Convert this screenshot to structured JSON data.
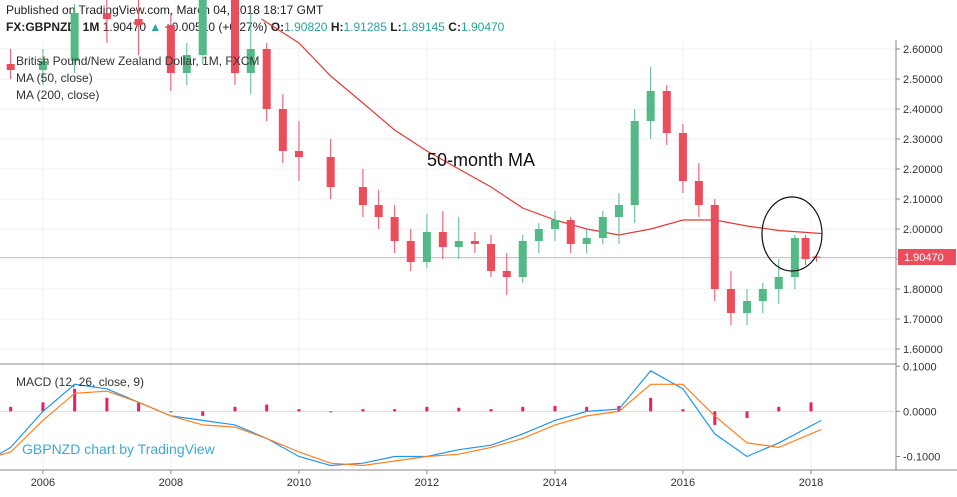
{
  "header": {
    "published": "Published on TradingView.com, March 04, 2018 18:17 GMT",
    "symbol": "FX:GBPNZD, 1M",
    "last": "1.90470",
    "change": "+0.00510 (+0.27%)",
    "open_label": "O:",
    "open": "1.90820",
    "high_label": "H:",
    "high": "1.91285",
    "low_label": "L:",
    "low": "1.89145",
    "close_label": "C:",
    "close": "1.90470"
  },
  "chart_data": [
    {
      "type": "candlestick",
      "title": "British Pound/New Zealand Dollar, 1M, FXCM",
      "legend": [
        "MA (50, close)",
        "MA (200, close)"
      ],
      "annotation": "50-month MA",
      "x_tick_labels": [
        "2006",
        "2008",
        "2010",
        "2012",
        "2014",
        "2016",
        "2018"
      ],
      "y_tick_labels": [
        "1.60000",
        "1.70000",
        "1.80000",
        "1.90000",
        "2.00000",
        "2.10000",
        "2.20000",
        "2.30000",
        "2.40000",
        "2.50000",
        "2.60000"
      ],
      "ylim": [
        1.55,
        2.63
      ],
      "current_price": 1.9047,
      "current_price_label": "1.90470",
      "colors": {
        "up": "#53b987",
        "down": "#eb4d5c",
        "ma50": "#e53935"
      },
      "ohlc": [
        [
          "2005-01-01",
          2.58,
          2.62,
          2.52,
          2.55
        ],
        [
          "2005-07-01",
          2.55,
          2.6,
          2.5,
          2.53
        ],
        [
          "2006-01-01",
          2.53,
          2.6,
          2.48,
          2.56
        ],
        [
          "2006-07-01",
          2.56,
          2.75,
          2.52,
          2.72
        ],
        [
          "2007-01-01",
          2.72,
          2.8,
          2.62,
          2.7
        ],
        [
          "2007-07-01",
          2.7,
          2.78,
          2.58,
          2.68
        ],
        [
          "2008-01-01",
          2.68,
          2.72,
          2.46,
          2.52
        ],
        [
          "2008-04-01",
          2.52,
          2.62,
          2.48,
          2.58
        ],
        [
          "2008-07-01",
          2.58,
          2.9,
          2.55,
          2.85
        ],
        [
          "2009-01-01",
          2.85,
          2.9,
          2.48,
          2.52
        ],
        [
          "2009-04-01",
          2.52,
          2.72,
          2.45,
          2.6
        ],
        [
          "2009-07-01",
          2.6,
          2.62,
          2.36,
          2.4
        ],
        [
          "2009-10-01",
          2.4,
          2.45,
          2.22,
          2.26
        ],
        [
          "2010-01-01",
          2.26,
          2.36,
          2.16,
          2.24
        ],
        [
          "2010-07-01",
          2.24,
          2.3,
          2.1,
          2.14
        ],
        [
          "2011-01-01",
          2.14,
          2.2,
          2.04,
          2.08
        ],
        [
          "2011-04-01",
          2.08,
          2.13,
          2.0,
          2.04
        ],
        [
          "2011-07-01",
          2.04,
          2.08,
          1.92,
          1.96
        ],
        [
          "2011-10-01",
          1.96,
          2.0,
          1.86,
          1.89
        ],
        [
          "2012-01-01",
          1.89,
          2.05,
          1.87,
          1.99
        ],
        [
          "2012-04-01",
          1.99,
          2.06,
          1.9,
          1.94
        ],
        [
          "2012-07-01",
          1.94,
          2.04,
          1.9,
          1.96
        ],
        [
          "2012-10-01",
          1.96,
          1.99,
          1.92,
          1.95
        ],
        [
          "2013-01-01",
          1.95,
          1.98,
          1.84,
          1.86
        ],
        [
          "2013-04-01",
          1.86,
          1.92,
          1.78,
          1.84
        ],
        [
          "2013-07-01",
          1.84,
          1.98,
          1.82,
          1.96
        ],
        [
          "2013-10-01",
          1.96,
          2.02,
          1.92,
          2.0
        ],
        [
          "2014-01-01",
          2.0,
          2.06,
          1.96,
          2.03
        ],
        [
          "2014-04-01",
          2.03,
          2.04,
          1.92,
          1.95
        ],
        [
          "2014-07-01",
          1.95,
          2.0,
          1.92,
          1.97
        ],
        [
          "2014-10-01",
          1.97,
          2.06,
          1.95,
          2.04
        ],
        [
          "2015-01-01",
          2.04,
          2.12,
          1.95,
          2.08
        ],
        [
          "2015-04-01",
          2.08,
          2.4,
          2.02,
          2.36
        ],
        [
          "2015-07-01",
          2.36,
          2.54,
          2.3,
          2.46
        ],
        [
          "2015-10-01",
          2.46,
          2.48,
          2.28,
          2.32
        ],
        [
          "2016-01-01",
          2.32,
          2.35,
          2.12,
          2.16
        ],
        [
          "2016-04-01",
          2.16,
          2.22,
          2.04,
          2.08
        ],
        [
          "2016-07-01",
          2.08,
          2.1,
          1.76,
          1.8
        ],
        [
          "2016-10-01",
          1.8,
          1.86,
          1.68,
          1.72
        ],
        [
          "2017-01-01",
          1.72,
          1.8,
          1.68,
          1.76
        ],
        [
          "2017-04-01",
          1.76,
          1.82,
          1.72,
          1.8
        ],
        [
          "2017-07-01",
          1.8,
          1.9,
          1.75,
          1.84
        ],
        [
          "2017-10-01",
          1.84,
          1.98,
          1.8,
          1.97
        ],
        [
          "2017-12-01",
          1.97,
          1.98,
          1.88,
          1.9
        ],
        [
          "2018-02-01",
          1.908,
          1.913,
          1.891,
          1.905
        ]
      ],
      "ma50": [
        [
          "2009-06-01",
          2.7
        ],
        [
          "2010-01-01",
          2.62
        ],
        [
          "2010-07-01",
          2.51
        ],
        [
          "2011-01-01",
          2.42
        ],
        [
          "2011-07-01",
          2.33
        ],
        [
          "2012-01-01",
          2.26
        ],
        [
          "2012-07-01",
          2.2
        ],
        [
          "2013-01-01",
          2.14
        ],
        [
          "2013-07-01",
          2.07
        ],
        [
          "2014-01-01",
          2.03
        ],
        [
          "2014-07-01",
          2.0
        ],
        [
          "2015-01-01",
          1.98
        ],
        [
          "2015-07-01",
          2.0
        ],
        [
          "2016-01-01",
          2.03
        ],
        [
          "2016-07-01",
          2.03
        ],
        [
          "2017-01-01",
          2.01
        ],
        [
          "2017-07-01",
          1.995
        ],
        [
          "2018-03-01",
          1.985
        ]
      ]
    },
    {
      "type": "macd",
      "legend": "MACD (12, 26, close, 9)",
      "watermark": "GBPNZD chart by TradingView",
      "y_tick_labels": [
        "-0.1000",
        "0.0000",
        "0.1000"
      ],
      "ylim": [
        -0.13,
        0.105
      ],
      "colors": {
        "histogram": "#e91e63",
        "macd": "#2196f3",
        "signal": "#ff7f1e"
      },
      "histogram": [
        [
          "2005-01-01",
          0.0
        ],
        [
          "2005-07-01",
          0.01
        ],
        [
          "2006-01-01",
          0.02
        ],
        [
          "2006-07-01",
          0.05
        ],
        [
          "2007-01-01",
          0.03
        ],
        [
          "2007-07-01",
          0.02
        ],
        [
          "2008-01-01",
          0.0
        ],
        [
          "2008-07-01",
          -0.01
        ],
        [
          "2009-01-01",
          0.01
        ],
        [
          "2009-07-01",
          0.015
        ],
        [
          "2010-01-01",
          0.005
        ],
        [
          "2010-07-01",
          0.0
        ],
        [
          "2011-01-01",
          0.005
        ],
        [
          "2011-07-01",
          0.005
        ],
        [
          "2012-01-01",
          0.01
        ],
        [
          "2012-07-01",
          0.008
        ],
        [
          "2013-01-01",
          0.005
        ],
        [
          "2013-07-01",
          0.01
        ],
        [
          "2014-01-01",
          0.012
        ],
        [
          "2014-07-01",
          0.01
        ],
        [
          "2015-01-01",
          0.012
        ],
        [
          "2015-07-01",
          0.03
        ],
        [
          "2016-01-01",
          0.005
        ],
        [
          "2016-07-01",
          -0.03
        ],
        [
          "2017-01-01",
          -0.015
        ],
        [
          "2017-07-01",
          0.01
        ],
        [
          "2018-01-01",
          0.02
        ]
      ],
      "macd_line": [
        [
          "2005-01-01",
          -0.12
        ],
        [
          "2005-07-01",
          -0.08
        ],
        [
          "2006-01-01",
          0.0
        ],
        [
          "2006-07-01",
          0.06
        ],
        [
          "2007-01-01",
          0.05
        ],
        [
          "2007-07-01",
          0.02
        ],
        [
          "2008-01-01",
          -0.01
        ],
        [
          "2008-07-01",
          -0.02
        ],
        [
          "2009-01-01",
          -0.03
        ],
        [
          "2009-07-01",
          -0.06
        ],
        [
          "2010-01-01",
          -0.1
        ],
        [
          "2010-07-01",
          -0.12
        ],
        [
          "2011-01-01",
          -0.115
        ],
        [
          "2011-07-01",
          -0.1
        ],
        [
          "2012-01-01",
          -0.1
        ],
        [
          "2012-07-01",
          -0.085
        ],
        [
          "2013-01-01",
          -0.075
        ],
        [
          "2013-07-01",
          -0.05
        ],
        [
          "2014-01-01",
          -0.02
        ],
        [
          "2014-07-01",
          0.0
        ],
        [
          "2015-01-01",
          0.005
        ],
        [
          "2015-07-01",
          0.09
        ],
        [
          "2016-01-01",
          0.05
        ],
        [
          "2016-07-01",
          -0.05
        ],
        [
          "2017-01-01",
          -0.1
        ],
        [
          "2017-07-01",
          -0.07
        ],
        [
          "2018-03-01",
          -0.02
        ]
      ],
      "signal_line": [
        [
          "2005-01-01",
          -0.11
        ],
        [
          "2005-07-01",
          -0.09
        ],
        [
          "2006-01-01",
          -0.02
        ],
        [
          "2006-07-01",
          0.04
        ],
        [
          "2007-01-01",
          0.045
        ],
        [
          "2007-07-01",
          0.02
        ],
        [
          "2008-01-01",
          -0.01
        ],
        [
          "2008-07-01",
          -0.03
        ],
        [
          "2009-01-01",
          -0.035
        ],
        [
          "2009-07-01",
          -0.06
        ],
        [
          "2010-01-01",
          -0.09
        ],
        [
          "2010-07-01",
          -0.115
        ],
        [
          "2011-01-01",
          -0.12
        ],
        [
          "2011-07-01",
          -0.11
        ],
        [
          "2012-01-01",
          -0.1
        ],
        [
          "2012-07-01",
          -0.095
        ],
        [
          "2013-01-01",
          -0.08
        ],
        [
          "2013-07-01",
          -0.06
        ],
        [
          "2014-01-01",
          -0.03
        ],
        [
          "2014-07-01",
          -0.01
        ],
        [
          "2015-01-01",
          0.0
        ],
        [
          "2015-07-01",
          0.06
        ],
        [
          "2016-01-01",
          0.06
        ],
        [
          "2016-07-01",
          -0.01
        ],
        [
          "2017-01-01",
          -0.07
        ],
        [
          "2017-07-01",
          -0.08
        ],
        [
          "2018-03-01",
          -0.04
        ]
      ]
    }
  ]
}
